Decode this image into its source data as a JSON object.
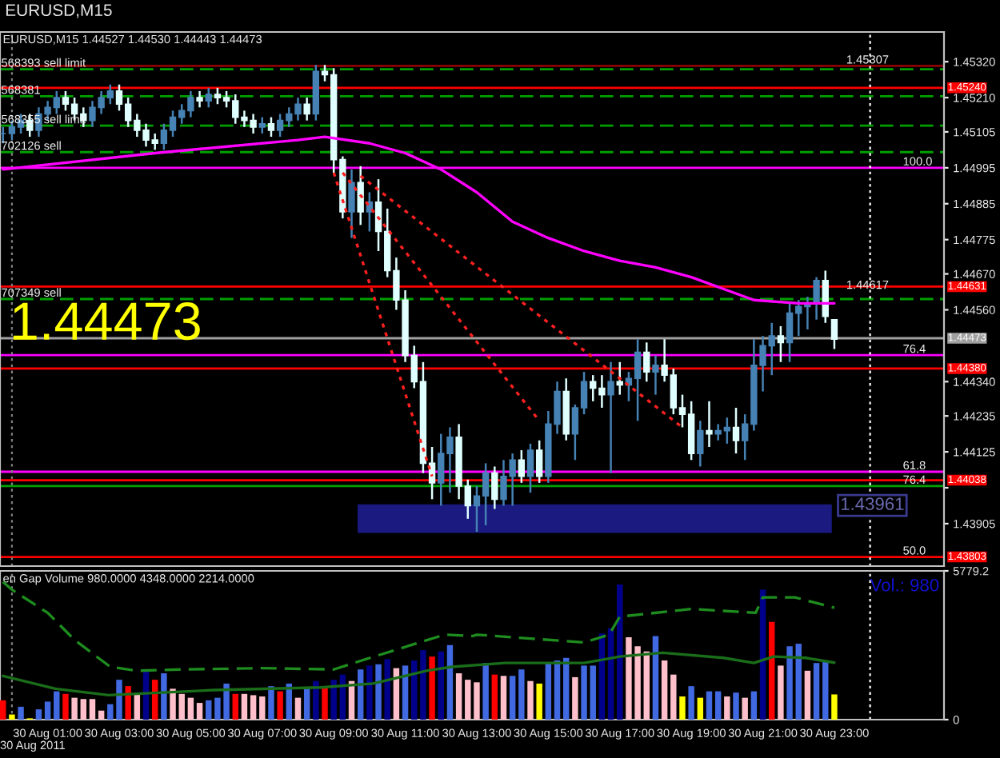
{
  "chart_data": [
    {
      "type": "candlestick",
      "title": "EURUSD,M15",
      "subtitle": "EURUSD,M15 1.44527 1.44530 1.44443 1.44473",
      "annotations": [
        "1.44473",
        {
          "text": "568393 sell limit",
          "x": "2011-08-29T23:42",
          "y": 1.45297
        },
        {
          "text": "568381",
          "x": "2011-08-29T23:42",
          "y": 1.45214
        },
        {
          "text": "568355 sell limit",
          "x": "2011-08-29T23:42",
          "y": 1.45124
        },
        {
          "text": "702126 sell",
          "x": "2011-08-29T23:42",
          "y": 1.45043
        },
        {
          "text": "707349 sell",
          "x": "2011-08-29T23:42",
          "y": 1.44593
        },
        {
          "text": "100.0",
          "x": "2011-08-31T00:55",
          "y": 1.44995
        },
        {
          "text": "76.4",
          "x": "2011-08-31T00:55",
          "y": 1.44421
        },
        {
          "text": "61.8",
          "x": "2011-08-31T00:55",
          "y": 1.44064
        },
        {
          "text": "76.4",
          "x": "2011-08-31T00:55",
          "y": 1.4402
        },
        {
          "text": "50.0",
          "x": "2011-08-31T00:55",
          "y": 1.43803
        },
        {
          "text": "1.45307",
          "x": "2011-08-30T23:20",
          "y": 1.45307
        },
        {
          "text": "1.44617",
          "x": "2011-08-30T23:20",
          "y": 1.44617
        }
      ],
      "x": [
        "2011-08-29T23:45",
        "2011-08-30T00:00",
        "2011-08-30T00:15",
        "2011-08-30T00:30",
        "2011-08-30T00:45",
        "2011-08-30T01:00",
        "2011-08-30T01:15",
        "2011-08-30T01:30",
        "2011-08-30T01:45",
        "2011-08-30T02:00",
        "2011-08-30T02:15",
        "2011-08-30T02:30",
        "2011-08-30T02:45",
        "2011-08-30T03:00",
        "2011-08-30T03:15",
        "2011-08-30T03:30",
        "2011-08-30T03:45",
        "2011-08-30T04:00",
        "2011-08-30T04:15",
        "2011-08-30T04:30",
        "2011-08-30T04:45",
        "2011-08-30T05:00",
        "2011-08-30T05:15",
        "2011-08-30T05:30",
        "2011-08-30T05:45",
        "2011-08-30T06:00",
        "2011-08-30T06:15",
        "2011-08-30T06:30",
        "2011-08-30T06:45",
        "2011-08-30T07:00",
        "2011-08-30T07:15",
        "2011-08-30T07:30",
        "2011-08-30T07:45",
        "2011-08-30T08:00",
        "2011-08-30T08:15",
        "2011-08-30T08:30",
        "2011-08-30T08:45",
        "2011-08-30T09:00",
        "2011-08-30T09:15",
        "2011-08-30T09:30",
        "2011-08-30T09:45",
        "2011-08-30T10:00",
        "2011-08-30T10:15",
        "2011-08-30T10:30",
        "2011-08-30T10:45",
        "2011-08-30T11:00",
        "2011-08-30T11:15",
        "2011-08-30T11:30",
        "2011-08-30T11:45",
        "2011-08-30T12:00",
        "2011-08-30T12:15",
        "2011-08-30T12:30",
        "2011-08-30T12:45",
        "2011-08-30T13:00",
        "2011-08-30T13:15",
        "2011-08-30T13:30",
        "2011-08-30T13:45",
        "2011-08-30T14:00",
        "2011-08-30T14:15",
        "2011-08-30T14:30",
        "2011-08-30T14:45",
        "2011-08-30T15:00",
        "2011-08-30T15:15",
        "2011-08-30T15:30",
        "2011-08-30T15:45",
        "2011-08-30T16:00",
        "2011-08-30T16:15",
        "2011-08-30T16:30",
        "2011-08-30T16:45",
        "2011-08-30T17:00",
        "2011-08-30T17:15",
        "2011-08-30T17:30",
        "2011-08-30T17:45",
        "2011-08-30T18:00",
        "2011-08-30T18:15",
        "2011-08-30T18:30",
        "2011-08-30T18:45",
        "2011-08-30T19:00",
        "2011-08-30T19:15",
        "2011-08-30T19:30",
        "2011-08-30T19:45",
        "2011-08-30T20:00",
        "2011-08-30T20:15",
        "2011-08-30T20:30",
        "2011-08-30T20:45",
        "2011-08-30T21:00",
        "2011-08-30T21:15",
        "2011-08-30T21:30",
        "2011-08-30T21:45",
        "2011-08-30T22:00",
        "2011-08-30T22:15",
        "2011-08-30T22:30",
        "2011-08-30T22:45",
        "2011-08-30T23:00"
      ],
      "ohlc": [
        [
          1.451,
          1.4512,
          1.4507,
          1.451
        ],
        [
          1.451,
          1.4514,
          1.4508,
          1.4512
        ],
        [
          1.4512,
          1.4516,
          1.451,
          1.4514
        ],
        [
          1.4514,
          1.4516,
          1.4509,
          1.4511
        ],
        [
          1.4511,
          1.4518,
          1.4509,
          1.4516
        ],
        [
          1.4516,
          1.452,
          1.4514,
          1.4518
        ],
        [
          1.4518,
          1.4523,
          1.4516,
          1.4521
        ],
        [
          1.4521,
          1.4523,
          1.4517,
          1.4519
        ],
        [
          1.4519,
          1.4521,
          1.4514,
          1.4516
        ],
        [
          1.4516,
          1.4518,
          1.4512,
          1.4514
        ],
        [
          1.4514,
          1.452,
          1.4512,
          1.4518
        ],
        [
          1.4518,
          1.4523,
          1.4516,
          1.4521
        ],
        [
          1.4521,
          1.4525,
          1.4519,
          1.4523
        ],
        [
          1.4523,
          1.4525,
          1.4517,
          1.4519
        ],
        [
          1.4519,
          1.4521,
          1.4512,
          1.4514
        ],
        [
          1.4514,
          1.4516,
          1.4509,
          1.4511
        ],
        [
          1.4511,
          1.4513,
          1.4506,
          1.4508
        ],
        [
          1.4508,
          1.451,
          1.4505,
          1.4507
        ],
        [
          1.4507,
          1.4513,
          1.4505,
          1.4511
        ],
        [
          1.4511,
          1.4517,
          1.4509,
          1.4515
        ],
        [
          1.4515,
          1.4519,
          1.4513,
          1.4517
        ],
        [
          1.4517,
          1.4523,
          1.4515,
          1.4521
        ],
        [
          1.4521,
          1.4523,
          1.4518,
          1.452
        ],
        [
          1.452,
          1.4524,
          1.4518,
          1.4522
        ],
        [
          1.4522,
          1.4524,
          1.4519,
          1.4521
        ],
        [
          1.4521,
          1.4523,
          1.4518,
          1.452
        ],
        [
          1.452,
          1.4522,
          1.4513,
          1.4515
        ],
        [
          1.4515,
          1.4517,
          1.4512,
          1.4514
        ],
        [
          1.4514,
          1.4516,
          1.451,
          1.4512
        ],
        [
          1.4512,
          1.4515,
          1.451,
          1.4513
        ],
        [
          1.4513,
          1.4515,
          1.4509,
          1.4511
        ],
        [
          1.4511,
          1.4516,
          1.4509,
          1.4514
        ],
        [
          1.4514,
          1.4518,
          1.4512,
          1.4516
        ],
        [
          1.4516,
          1.4521,
          1.4514,
          1.4519
        ],
        [
          1.4519,
          1.4521,
          1.4514,
          1.4516
        ],
        [
          1.4516,
          1.4531,
          1.4514,
          1.4529
        ],
        [
          1.4529,
          1.4531,
          1.4526,
          1.4528
        ],
        [
          1.4528,
          1.453,
          1.4498,
          1.4502
        ],
        [
          1.4502,
          1.4503,
          1.4484,
          1.4486
        ],
        [
          1.4486,
          1.4499,
          1.4478,
          1.4495
        ],
        [
          1.4495,
          1.45,
          1.4482,
          1.4486
        ],
        [
          1.4486,
          1.4492,
          1.448,
          1.4489
        ],
        [
          1.4489,
          1.4496,
          1.4474,
          1.448
        ],
        [
          1.448,
          1.4487,
          1.4466,
          1.4468
        ],
        [
          1.4468,
          1.4472,
          1.4456,
          1.4459
        ],
        [
          1.4459,
          1.4462,
          1.444,
          1.4442
        ],
        [
          1.4442,
          1.4445,
          1.4432,
          1.4434
        ],
        [
          1.4434,
          1.444,
          1.4406,
          1.4409
        ],
        [
          1.4409,
          1.4414,
          1.4398,
          1.4403
        ],
        [
          1.4403,
          1.4418,
          1.4396,
          1.4412
        ],
        [
          1.4412,
          1.442,
          1.44,
          1.4417
        ],
        [
          1.4417,
          1.4421,
          1.4398,
          1.4402
        ],
        [
          1.4402,
          1.4404,
          1.4392,
          1.4396
        ],
        [
          1.4396,
          1.4402,
          1.4388,
          1.4399
        ],
        [
          1.4399,
          1.4409,
          1.439,
          1.4406
        ],
        [
          1.4406,
          1.4408,
          1.4395,
          1.4398
        ],
        [
          1.4398,
          1.441,
          1.4396,
          1.4405
        ],
        [
          1.4405,
          1.4412,
          1.4396,
          1.441
        ],
        [
          1.441,
          1.4413,
          1.4403,
          1.4405
        ],
        [
          1.4405,
          1.4415,
          1.44,
          1.4413
        ],
        [
          1.4413,
          1.4416,
          1.4403,
          1.4405
        ],
        [
          1.4405,
          1.4425,
          1.4403,
          1.4421
        ],
        [
          1.4421,
          1.4434,
          1.4418,
          1.4431
        ],
        [
          1.4431,
          1.4435,
          1.4416,
          1.4418
        ],
        [
          1.4418,
          1.4427,
          1.441,
          1.4426
        ],
        [
          1.4426,
          1.4437,
          1.4424,
          1.4434
        ],
        [
          1.4434,
          1.4436,
          1.4428,
          1.4432
        ],
        [
          1.4432,
          1.4436,
          1.4426,
          1.443
        ],
        [
          1.443,
          1.444,
          1.4406,
          1.4434
        ],
        [
          1.4434,
          1.444,
          1.443,
          1.4433
        ],
        [
          1.4433,
          1.4437,
          1.4428,
          1.4435
        ],
        [
          1.4435,
          1.4447,
          1.4422,
          1.4443
        ],
        [
          1.4443,
          1.4446,
          1.4434,
          1.4437
        ],
        [
          1.4437,
          1.4442,
          1.443,
          1.4439
        ],
        [
          1.4439,
          1.4447,
          1.4434,
          1.4436
        ],
        [
          1.4436,
          1.4438,
          1.4424,
          1.4426
        ],
        [
          1.4426,
          1.443,
          1.442,
          1.4424
        ],
        [
          1.4424,
          1.4428,
          1.441,
          1.4412
        ],
        [
          1.4412,
          1.4422,
          1.4408,
          1.4419
        ],
        [
          1.4419,
          1.4428,
          1.4414,
          1.4418
        ],
        [
          1.4418,
          1.4421,
          1.4416,
          1.4419
        ],
        [
          1.4419,
          1.4423,
          1.4415,
          1.442
        ],
        [
          1.442,
          1.4426,
          1.4412,
          1.4416
        ],
        [
          1.4416,
          1.4424,
          1.441,
          1.4421
        ],
        [
          1.4421,
          1.4447,
          1.4419,
          1.4439
        ],
        [
          1.4439,
          1.4448,
          1.4431,
          1.4445
        ],
        [
          1.4445,
          1.4452,
          1.4436,
          1.4448
        ],
        [
          1.4448,
          1.4451,
          1.444,
          1.4446
        ],
        [
          1.4446,
          1.4458,
          1.444,
          1.4455
        ],
        [
          1.4455,
          1.4459,
          1.4448,
          1.4457
        ],
        [
          1.4457,
          1.446,
          1.445,
          1.4458
        ],
        [
          1.4458,
          1.4466,
          1.4453,
          1.4465
        ],
        [
          1.4465,
          1.4468,
          1.4452,
          1.4454
        ],
        [
          1.4453,
          1.4453,
          1.4444,
          1.4447
        ]
      ],
      "colors": [
        "#4682b4",
        "#4682b4",
        "#4682b4",
        "#e0ffff",
        "#4682b4",
        "#4682b4",
        "#4682b4",
        "#e0ffff",
        "#e0ffff",
        "#e0ffff",
        "#4682b4",
        "#4682b4",
        "#4682b4",
        "#e0ffff",
        "#e0ffff",
        "#e0ffff",
        "#e0ffff",
        "#e0ffff",
        "#4682b4",
        "#4682b4",
        "#4682b4",
        "#4682b4",
        "#e0ffff",
        "#4682b4",
        "#e0ffff",
        "#e0ffff",
        "#e0ffff",
        "#e0ffff",
        "#e0ffff",
        "#4682b4",
        "#e0ffff",
        "#4682b4",
        "#4682b4",
        "#4682b4",
        "#e0ffff",
        "#4682b4",
        "#e0ffff",
        "#e0ffff",
        "#e0ffff",
        "#4682b4",
        "#e0ffff",
        "#4682b4",
        "#e0ffff",
        "#e0ffff",
        "#e0ffff",
        "#e0ffff",
        "#e0ffff",
        "#e0ffff",
        "#e0ffff",
        "#4682b4",
        "#4682b4",
        "#e0ffff",
        "#e0ffff",
        "#4682b4",
        "#4682b4",
        "#e0ffff",
        "#4682b4",
        "#4682b4",
        "#e0ffff",
        "#4682b4",
        "#e0ffff",
        "#4682b4",
        "#4682b4",
        "#e0ffff",
        "#4682b4",
        "#4682b4",
        "#e0ffff",
        "#e0ffff",
        "#4682b4",
        "#e0ffff",
        "#4682b4",
        "#4682b4",
        "#e0ffff",
        "#4682b4",
        "#e0ffff",
        "#e0ffff",
        "#e0ffff",
        "#e0ffff",
        "#4682b4",
        "#e0ffff",
        "#4682b4",
        "#4682b4",
        "#e0ffff",
        "#4682b4",
        "#4682b4",
        "#4682b4",
        "#4682b4",
        "#e0ffff",
        "#4682b4",
        "#4682b4",
        "#4682b4",
        "#4682b4",
        "#e0ffff",
        "#e0ffff"
      ],
      "series": [
        {
          "type": "line",
          "color": "#ff00ff",
          "x": [
            "2011-08-29T23:45",
            "2011-08-30T04:00",
            "2011-08-30T08:00",
            "2011-08-30T08:45",
            "2011-08-30T10:00",
            "2011-08-30T11:00",
            "2011-08-30T12:00",
            "2011-08-30T13:00",
            "2011-08-30T14:00",
            "2011-08-30T15:00",
            "2011-08-30T16:00",
            "2011-08-30T17:00",
            "2011-08-30T18:00",
            "2011-08-30T19:00",
            "2011-08-30T20:00",
            "2011-08-30T20:45",
            "2011-08-30T22:00",
            "2011-08-30T23:00"
          ],
          "values": [
            1.4499,
            1.4504,
            1.4508,
            1.4509,
            1.4507,
            1.4504,
            1.4499,
            1.4492,
            1.4483,
            1.4478,
            1.4474,
            1.4471,
            1.4469,
            1.4466,
            1.4462,
            1.4459,
            1.4458,
            1.4458
          ]
        },
        {
          "type": "line",
          "color": "#ff2020",
          "line_style": "dotted",
          "x": [
            "2011-08-30T09:00",
            "2011-08-30T11:45"
          ],
          "values": [
            1.4498,
            1.4405
          ]
        },
        {
          "type": "line",
          "color": "#ff2020",
          "line_style": "dotted",
          "x": [
            "2011-08-30T09:15",
            "2011-08-30T14:45"
          ],
          "values": [
            1.4498,
            1.4422
          ]
        },
        {
          "type": "line",
          "color": "#ff2020",
          "line_style": "dotted",
          "x": [
            "2011-08-30T09:45",
            "2011-08-30T18:45"
          ],
          "values": [
            1.4497,
            1.442
          ]
        }
      ],
      "ref_lines": [
        {
          "axis": "y",
          "value": 1.4524,
          "label": "1.45240",
          "color": "#ff0000"
        },
        {
          "axis": "y",
          "value": 1.44631,
          "label": "1.44631",
          "color": "#ff0000"
        },
        {
          "axis": "y",
          "value": 1.4438,
          "label": "1.44380",
          "color": "#ff0000"
        },
        {
          "axis": "y",
          "value": 1.44038,
          "label": "1.44038",
          "color": "#ff0000"
        },
        {
          "axis": "y",
          "value": 1.43803,
          "label": "1.43803",
          "color": "#ff0000"
        },
        {
          "axis": "y",
          "value": 1.44473,
          "label": "1.44473",
          "color": "#a0a0a0"
        },
        {
          "axis": "y",
          "value": 1.45307,
          "color": "#8b0000"
        },
        {
          "axis": "y",
          "value": 1.44995,
          "color": "#ff00ff"
        },
        {
          "axis": "y",
          "value": 1.44421,
          "color": "#ff00ff"
        },
        {
          "axis": "y",
          "value": 1.44064,
          "color": "#ff00ff"
        },
        {
          "axis": "y",
          "value": 1.4402,
          "color": "#00a000"
        },
        {
          "axis": "y",
          "value": 1.45297,
          "color": "#00a000",
          "line_style": "dashed"
        },
        {
          "axis": "y",
          "value": 1.45214,
          "color": "#00a000",
          "line_style": "dashed"
        },
        {
          "axis": "y",
          "value": 1.45124,
          "color": "#00a000",
          "line_style": "dashed"
        },
        {
          "axis": "y",
          "value": 1.45043,
          "color": "#00a000",
          "line_style": "dashed"
        },
        {
          "axis": "y",
          "value": 1.44593,
          "color": "#00a000",
          "line_style": "dashed"
        },
        {
          "axis": "x",
          "value": "2011-08-30T00:00",
          "color": "#808080",
          "line_style": "dotted"
        },
        {
          "axis": "x",
          "value": "2011-08-31T00:00",
          "color": "#ffffff",
          "line_style": "dotted"
        }
      ],
      "bands": [
        {
          "axis": "y",
          "from": 1.4388,
          "to": 1.43961,
          "label": "1.43961",
          "color": "#1a1a80"
        }
      ],
      "xlim": [
        "2011-08-29T23:40",
        "2011-08-31T02:04"
      ],
      "ylim": [
        1.43775,
        1.45411
      ],
      "tick_labels": "y",
      "yticks": [
        {
          "value": 1.4532,
          "label": "1.45320"
        },
        {
          "value": 1.4521,
          "label": "1.45210"
        },
        {
          "value": 1.45105,
          "label": "1.45105"
        },
        {
          "value": 1.44995,
          "label": "1.44995"
        },
        {
          "value": 1.44885,
          "label": "1.44885"
        },
        {
          "value": 1.44775,
          "label": "1.44775"
        },
        {
          "value": 1.4467,
          "label": "1.44670"
        },
        {
          "value": 1.4456,
          "label": "1.44560"
        },
        {
          "value": 1.4434,
          "label": "1.44340"
        },
        {
          "value": 1.44235,
          "label": "1.44235"
        },
        {
          "value": 1.44125,
          "label": "1.44125"
        },
        {
          "value": 1.44015,
          "label": null
        },
        {
          "value": 1.43905,
          "label": "1.43905"
        }
      ]
    },
    {
      "type": "bar",
      "title": "en Gap Volume 980.0000 4348.0000 2214.0000",
      "annotations": [
        "Vol.: 980"
      ],
      "xlabel": "30 Aug 2011",
      "x": [
        "2011-08-29T23:45",
        "2011-08-30T00:00",
        "2011-08-30T00:15",
        "2011-08-30T00:30",
        "2011-08-30T00:45",
        "2011-08-30T01:00",
        "2011-08-30T01:15",
        "2011-08-30T01:30",
        "2011-08-30T01:45",
        "2011-08-30T02:00",
        "2011-08-30T02:15",
        "2011-08-30T02:30",
        "2011-08-30T02:45",
        "2011-08-30T03:00",
        "2011-08-30T03:15",
        "2011-08-30T03:30",
        "2011-08-30T03:45",
        "2011-08-30T04:00",
        "2011-08-30T04:15",
        "2011-08-30T04:30",
        "2011-08-30T04:45",
        "2011-08-30T05:00",
        "2011-08-30T05:15",
        "2011-08-30T05:30",
        "2011-08-30T05:45",
        "2011-08-30T06:00",
        "2011-08-30T06:15",
        "2011-08-30T06:30",
        "2011-08-30T06:45",
        "2011-08-30T07:00",
        "2011-08-30T07:15",
        "2011-08-30T07:30",
        "2011-08-30T07:45",
        "2011-08-30T08:00",
        "2011-08-30T08:15",
        "2011-08-30T08:30",
        "2011-08-30T08:45",
        "2011-08-30T09:00",
        "2011-08-30T09:15",
        "2011-08-30T09:30",
        "2011-08-30T09:45",
        "2011-08-30T10:00",
        "2011-08-30T10:15",
        "2011-08-30T10:30",
        "2011-08-30T10:45",
        "2011-08-30T11:00",
        "2011-08-30T11:15",
        "2011-08-30T11:30",
        "2011-08-30T11:45",
        "2011-08-30T12:00",
        "2011-08-30T12:15",
        "2011-08-30T12:30",
        "2011-08-30T12:45",
        "2011-08-30T13:00",
        "2011-08-30T13:15",
        "2011-08-30T13:30",
        "2011-08-30T13:45",
        "2011-08-30T14:00",
        "2011-08-30T14:15",
        "2011-08-30T14:30",
        "2011-08-30T14:45",
        "2011-08-30T15:00",
        "2011-08-30T15:15",
        "2011-08-30T15:30",
        "2011-08-30T15:45",
        "2011-08-30T16:00",
        "2011-08-30T16:15",
        "2011-08-30T16:30",
        "2011-08-30T16:45",
        "2011-08-30T17:00",
        "2011-08-30T17:15",
        "2011-08-30T17:30",
        "2011-08-30T17:45",
        "2011-08-30T18:00",
        "2011-08-30T18:15",
        "2011-08-30T18:30",
        "2011-08-30T18:45",
        "2011-08-30T19:00",
        "2011-08-30T19:15",
        "2011-08-30T19:30",
        "2011-08-30T19:45",
        "2011-08-30T20:00",
        "2011-08-30T20:15",
        "2011-08-30T20:30",
        "2011-08-30T20:45",
        "2011-08-30T21:00",
        "2011-08-30T21:15",
        "2011-08-30T21:30",
        "2011-08-30T21:45",
        "2011-08-30T22:00",
        "2011-08-30T22:15",
        "2011-08-30T22:30",
        "2011-08-30T22:45",
        "2011-08-30T23:00"
      ],
      "values": [
        750,
        200,
        500,
        50,
        400,
        700,
        1100,
        1000,
        850,
        800,
        800,
        350,
        600,
        1550,
        1300,
        1000,
        1900,
        1550,
        1800,
        1200,
        1000,
        850,
        650,
        750,
        850,
        1400,
        1000,
        1000,
        950,
        900,
        1300,
        1100,
        1400,
        850,
        1200,
        1500,
        1300,
        1550,
        1750,
        1500,
        1950,
        2100,
        2150,
        2350,
        2000,
        2100,
        2300,
        2700,
        2450,
        2650,
        2900,
        1800,
        1550,
        1450,
        2200,
        1750,
        1700,
        1700,
        1950,
        1500,
        1400,
        2200,
        2300,
        2400,
        1650,
        2100,
        2100,
        3350,
        3550,
        5250,
        3200,
        2850,
        2650,
        3250,
        2300,
        1750,
        900,
        1300,
        850,
        1100,
        1100,
        900,
        1050,
        850,
        1100,
        5050,
        3800,
        2100,
        2850,
        2950,
        1900,
        2200,
        2250,
        980
      ],
      "colors": [
        "#ff0000",
        "#ffff00",
        "#4169e1",
        "#ffff00",
        "#4169e1",
        "#4169e1",
        "#4169e1",
        "#ff0000",
        "#ffc0cb",
        "#ffc0cb",
        "#ffc0cb",
        "#ffc0cb",
        "#4169e1",
        "#4169e1",
        "#ff0000",
        "#ffc0cb",
        "#00008b",
        "#ff0000",
        "#4169e1",
        "#ffc0cb",
        "#ffc0cb",
        "#ffc0cb",
        "#ffc0cb",
        "#4169e1",
        "#4169e1",
        "#4169e1",
        "#ff0000",
        "#ffc0cb",
        "#ffc0cb",
        "#ffc0cb",
        "#4169e1",
        "#ff0000",
        "#4169e1",
        "#ffc0cb",
        "#4169e1",
        "#00008b",
        "#ff0000",
        "#00008b",
        "#00008b",
        "#ffc0cb",
        "#4169e1",
        "#00008b",
        "#4169e1",
        "#00008b",
        "#ffc0cb",
        "#4169e1",
        "#00008b",
        "#00008b",
        "#ff0000",
        "#00008b",
        "#4169e1",
        "#ffc0cb",
        "#ffc0cb",
        "#ffc0cb",
        "#4169e1",
        "#ff0000",
        "#ffc0cb",
        "#4169e1",
        "#4169e1",
        "#ffc0cb",
        "#ffff00",
        "#4169e1",
        "#4169e1",
        "#4169e1",
        "#ffc0cb",
        "#4169e1",
        "#4169e1",
        "#00008b",
        "#00008b",
        "#00008b",
        "#ffc0cb",
        "#ffc0cb",
        "#ffc0cb",
        "#4169e1",
        "#ffc0cb",
        "#ffc0cb",
        "#ffff00",
        "#4169e1",
        "#ffff00",
        "#4169e1",
        "#4169e1",
        "#ffc0cb",
        "#4169e1",
        "#ffc0cb",
        "#4169e1",
        "#00008b",
        "#ff0000",
        "#ffc0cb",
        "#4169e1",
        "#4169e1",
        "#ffc0cb",
        "#4169e1",
        "#4169e1",
        "#ffff00"
      ],
      "series": [
        {
          "type": "line",
          "color": "#1e8c1e",
          "line_style": "dashed",
          "x": [
            "2011-08-29T23:45",
            "2011-08-30T00:00",
            "2011-08-30T01:00",
            "2011-08-30T01:45",
            "2011-08-30T02:45",
            "2011-08-30T03:30",
            "2011-08-30T04:45",
            "2011-08-30T07:00",
            "2011-08-30T09:00",
            "2011-08-30T09:54",
            "2011-08-30T11:24",
            "2011-08-30T12:06",
            "2011-08-30T12:54",
            "2011-08-30T13:00",
            "2011-08-30T14:30",
            "2011-08-30T16:00",
            "2011-08-30T16:42",
            "2011-08-30T17:00",
            "2011-08-30T19:00",
            "2011-08-30T20:48",
            "2011-08-30T21:00",
            "2011-08-30T21:54",
            "2011-08-30T23:00"
          ],
          "values": [
            5350,
            5050,
            4150,
            3100,
            2050,
            1900,
            1950,
            2000,
            1950,
            2350,
            3000,
            3300,
            3250,
            3300,
            3150,
            3000,
            3300,
            4000,
            4300,
            4150,
            4750,
            4750,
            4348
          ]
        },
        {
          "type": "line",
          "color": "#1a6e1a",
          "x": [
            "2011-08-29T23:45",
            "2011-08-30T01:13",
            "2011-08-30T02:42",
            "2011-08-30T05:40",
            "2011-08-30T08:38",
            "2011-08-30T10:06",
            "2011-08-30T11:36",
            "2011-08-30T12:18",
            "2011-08-30T13:48",
            "2011-08-30T14:30",
            "2011-08-30T16:00",
            "2011-08-30T17:00",
            "2011-08-30T18:12",
            "2011-08-30T19:54",
            "2011-08-30T20:45",
            "2011-08-30T21:18",
            "2011-08-30T22:12",
            "2011-08-30T23:00"
          ],
          "values": [
            1700,
            1200,
            950,
            1150,
            1250,
            1400,
            1900,
            2050,
            2200,
            2200,
            2200,
            2450,
            2600,
            2400,
            2200,
            2450,
            2400,
            2214
          ]
        }
      ],
      "ref_lines": [
        {
          "axis": "x",
          "value": "2011-08-30T00:00",
          "color": "#808080",
          "line_style": "dotted"
        },
        {
          "axis": "x",
          "value": "2011-08-31T00:00",
          "color": "#ffffff",
          "line_style": "dotted"
        }
      ],
      "xlim": [
        "2011-08-29T23:40",
        "2011-08-31T02:04"
      ],
      "ylim": [
        0,
        5779.2
      ],
      "yticks": [
        0,
        5779.2
      ],
      "xticks": [
        {
          "value": "2011-08-30T00:00",
          "label": null
        },
        {
          "value": "2011-08-30T01:00",
          "label": "30 Aug 01:00"
        },
        {
          "value": "2011-08-30T03:00",
          "label": "30 Aug 03:00"
        },
        {
          "value": "2011-08-30T05:00",
          "label": "30 Aug 05:00"
        },
        {
          "value": "2011-08-30T07:00",
          "label": "30 Aug 07:00"
        },
        {
          "value": "2011-08-30T09:00",
          "label": "30 Aug 09:00"
        },
        {
          "value": "2011-08-30T11:00",
          "label": "30 Aug 11:00"
        },
        {
          "value": "2011-08-30T13:00",
          "label": "30 Aug 13:00"
        },
        {
          "value": "2011-08-30T15:00",
          "label": "30 Aug 15:00"
        },
        {
          "value": "2011-08-30T17:00",
          "label": "30 Aug 17:00"
        },
        {
          "value": "2011-08-30T19:00",
          "label": "30 Aug 19:00"
        },
        {
          "value": "2011-08-30T21:00",
          "label": "30 Aug 21:00"
        },
        {
          "value": "2011-08-30T23:00",
          "label": "30 Aug 23:00"
        }
      ]
    }
  ]
}
